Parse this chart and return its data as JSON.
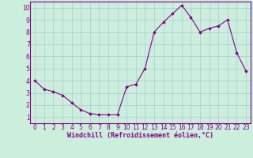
{
  "x": [
    0,
    1,
    2,
    3,
    4,
    5,
    6,
    7,
    8,
    9,
    10,
    11,
    12,
    13,
    14,
    15,
    16,
    17,
    18,
    19,
    20,
    21,
    22,
    23
  ],
  "y": [
    4.0,
    3.3,
    3.1,
    2.8,
    2.2,
    1.6,
    1.3,
    1.2,
    1.2,
    1.2,
    3.5,
    3.7,
    5.0,
    8.0,
    8.8,
    9.5,
    10.2,
    9.2,
    8.0,
    8.3,
    8.5,
    9.0,
    6.3,
    4.8
  ],
  "line_color": "#880088",
  "marker": "D",
  "marker_size": 1.8,
  "bg_color": "#cceedd",
  "grid_color": "#aacccc",
  "xlabel": "Windchill (Refroidissement éolien,°C)",
  "xlabel_color": "#880088",
  "xlim": [
    -0.5,
    23.5
  ],
  "ylim": [
    0.5,
    10.5
  ],
  "yticks": [
    1,
    2,
    3,
    4,
    5,
    6,
    7,
    8,
    9,
    10
  ],
  "xticks": [
    0,
    1,
    2,
    3,
    4,
    5,
    6,
    7,
    8,
    9,
    10,
    11,
    12,
    13,
    14,
    15,
    16,
    17,
    18,
    19,
    20,
    21,
    22,
    23
  ],
  "tick_color": "#880088",
  "spine_color": "#880088",
  "tick_fontsize": 5.5,
  "xlabel_fontsize": 6.0
}
